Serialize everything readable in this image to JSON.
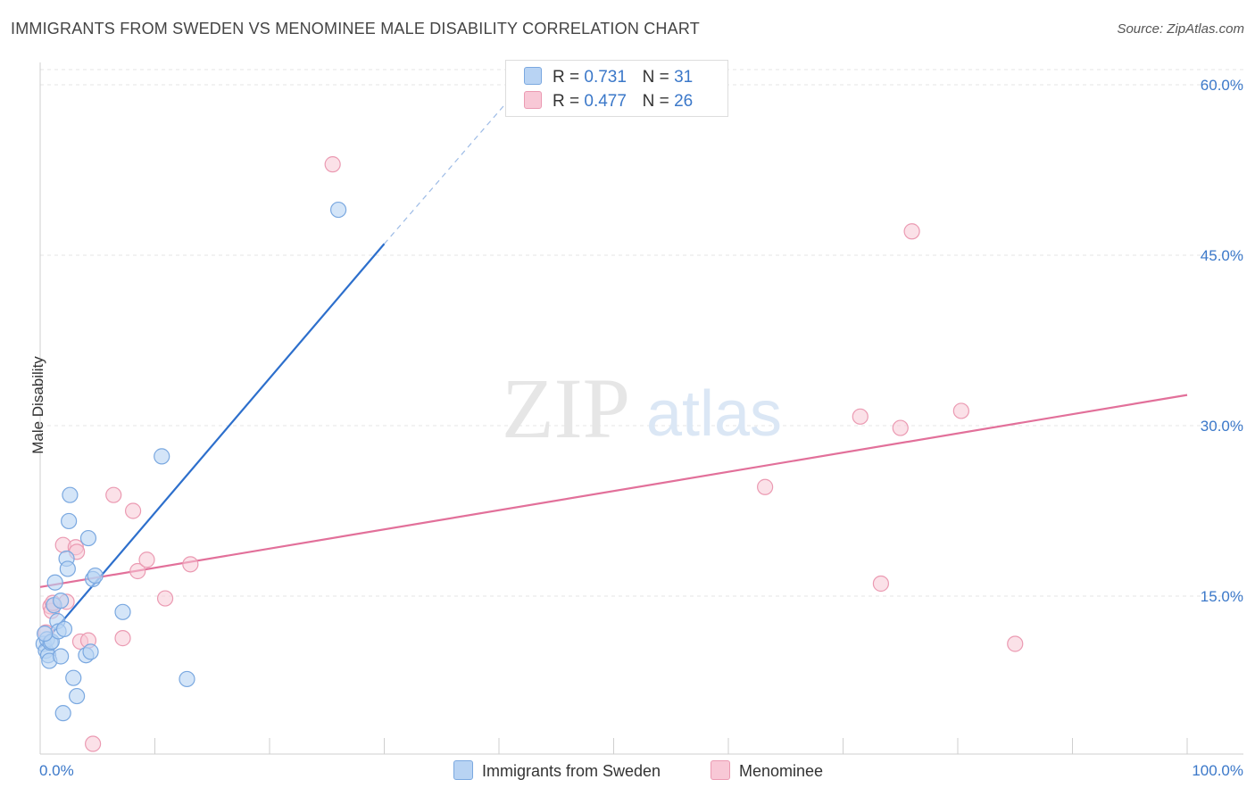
{
  "title": "IMMIGRANTS FROM SWEDEN VS MENOMINEE MALE DISABILITY CORRELATION CHART",
  "source": "Source: ZipAtlas.com",
  "watermark": {
    "zip": "ZIP",
    "atlas": "atlas"
  },
  "legend_top": [
    {
      "r_label": "R =",
      "r_value": "0.731",
      "n_label": "N =",
      "n_value": "31"
    },
    {
      "r_label": "R =",
      "r_value": "0.477",
      "n_label": "N =",
      "n_value": "26"
    }
  ],
  "colors": {
    "blue_fill": "#b8d3f3",
    "blue_stroke": "#7aa8e0",
    "blue_line": "#2d6fcc",
    "pink_fill": "#f8c8d6",
    "pink_stroke": "#eb9ab2",
    "pink_line": "#e2709a",
    "axis_label": "#3b78c9"
  },
  "chart_data": {
    "type": "scatter",
    "title": "IMMIGRANTS FROM SWEDEN VS MENOMINEE MALE DISABILITY CORRELATION CHART",
    "xlabel": "",
    "ylabel": "Male Disability",
    "xlim": [
      0,
      100
    ],
    "ylim": [
      0,
      62
    ],
    "x_tick_labels": [
      "0.0%",
      "100.0%"
    ],
    "y_ticks": [
      15,
      30,
      45,
      60
    ],
    "y_tick_labels": [
      "15.0%",
      "30.0%",
      "45.0%",
      "60.0%"
    ],
    "grid": true,
    "series": [
      {
        "name": "Immigrants from Sweden",
        "R": 0.731,
        "N": 31,
        "points": [
          [
            0.3,
            10.8
          ],
          [
            0.5,
            10.2
          ],
          [
            0.6,
            11.2
          ],
          [
            0.7,
            9.8
          ],
          [
            0.8,
            9.3
          ],
          [
            0.9,
            10.9
          ],
          [
            1.0,
            11.0
          ],
          [
            1.2,
            14.2
          ],
          [
            1.3,
            16.2
          ],
          [
            1.5,
            12.8
          ],
          [
            1.6,
            11.9
          ],
          [
            1.8,
            14.6
          ],
          [
            1.8,
            9.7
          ],
          [
            2.0,
            4.7
          ],
          [
            2.1,
            12.1
          ],
          [
            2.3,
            18.3
          ],
          [
            2.4,
            17.4
          ],
          [
            2.5,
            21.6
          ],
          [
            2.6,
            23.9
          ],
          [
            2.9,
            7.8
          ],
          [
            3.2,
            6.2
          ],
          [
            4.0,
            9.8
          ],
          [
            4.2,
            20.1
          ],
          [
            4.4,
            10.1
          ],
          [
            4.6,
            16.5
          ],
          [
            4.8,
            16.8
          ],
          [
            7.2,
            13.6
          ],
          [
            10.6,
            27.3
          ],
          [
            12.8,
            7.7
          ],
          [
            26.0,
            49.0
          ],
          [
            0.4,
            11.7
          ]
        ],
        "trend": {
          "x": [
            0.0,
            30.0
          ],
          "y": [
            10.5,
            46.0
          ],
          "dashed_to": {
            "x": 42.0,
            "y": 60.0
          }
        }
      },
      {
        "name": "Menominee",
        "R": 0.477,
        "N": 26,
        "points": [
          [
            0.5,
            11.8
          ],
          [
            0.9,
            14.1
          ],
          [
            1.0,
            13.7
          ],
          [
            2.0,
            19.5
          ],
          [
            2.3,
            14.5
          ],
          [
            3.1,
            19.3
          ],
          [
            3.2,
            18.9
          ],
          [
            3.5,
            11.0
          ],
          [
            4.2,
            11.1
          ],
          [
            4.6,
            2.0
          ],
          [
            6.4,
            23.9
          ],
          [
            7.2,
            11.3
          ],
          [
            8.1,
            22.5
          ],
          [
            8.5,
            17.2
          ],
          [
            9.3,
            18.2
          ],
          [
            10.9,
            14.8
          ],
          [
            13.1,
            17.8
          ],
          [
            25.5,
            53.0
          ],
          [
            63.2,
            24.6
          ],
          [
            71.5,
            30.8
          ],
          [
            73.3,
            16.1
          ],
          [
            75.0,
            29.8
          ],
          [
            76.0,
            47.1
          ],
          [
            80.3,
            31.3
          ],
          [
            85.0,
            10.8
          ],
          [
            1.1,
            14.4
          ]
        ],
        "trend": {
          "x": [
            0.0,
            100.0
          ],
          "y": [
            15.8,
            32.7
          ]
        }
      }
    ]
  }
}
